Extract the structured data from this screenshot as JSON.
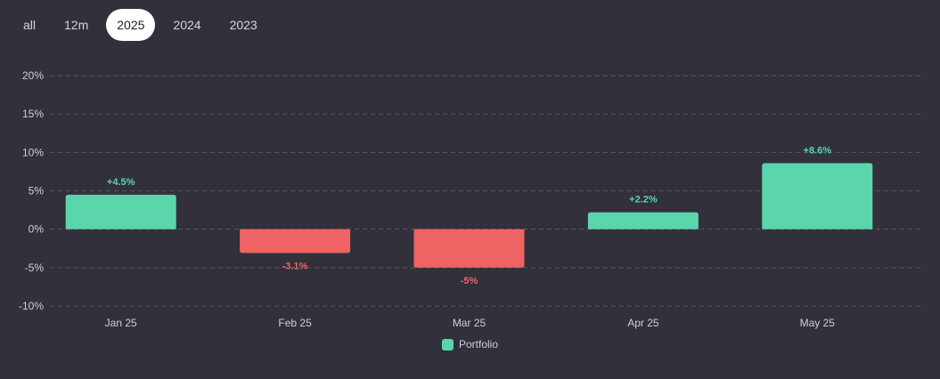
{
  "tabs": [
    {
      "label": "all",
      "active": false
    },
    {
      "label": "12m",
      "active": false
    },
    {
      "label": "2025",
      "active": true
    },
    {
      "label": "2024",
      "active": false
    },
    {
      "label": "2023",
      "active": false
    }
  ],
  "colors": {
    "positive": "#5bd6ac",
    "negative": "#ee6363",
    "background": "#31303b",
    "grid": "#5a5a66",
    "tick": "#cfcfd8"
  },
  "legend": {
    "label": "Portfolio",
    "color": "#5bd6ac"
  },
  "chart_data": {
    "type": "bar",
    "categories": [
      "Jan 25",
      "Feb 25",
      "Mar 25",
      "Apr 25",
      "May 25"
    ],
    "series": [
      {
        "name": "Portfolio",
        "values": [
          4.5,
          -3.1,
          -5,
          2.2,
          8.6
        ]
      }
    ],
    "data_labels": [
      "+4.5%",
      "-3.1%",
      "-5%",
      "+2.2%",
      "+8.6%"
    ],
    "y_ticks": [
      20,
      15,
      10,
      5,
      0,
      -5,
      -10
    ],
    "y_tick_labels": [
      "20%",
      "15%",
      "10%",
      "5%",
      "0%",
      "-5%",
      "-10%"
    ],
    "ylim": [
      -10,
      20
    ],
    "grid": true,
    "legend_position": "bottom"
  }
}
